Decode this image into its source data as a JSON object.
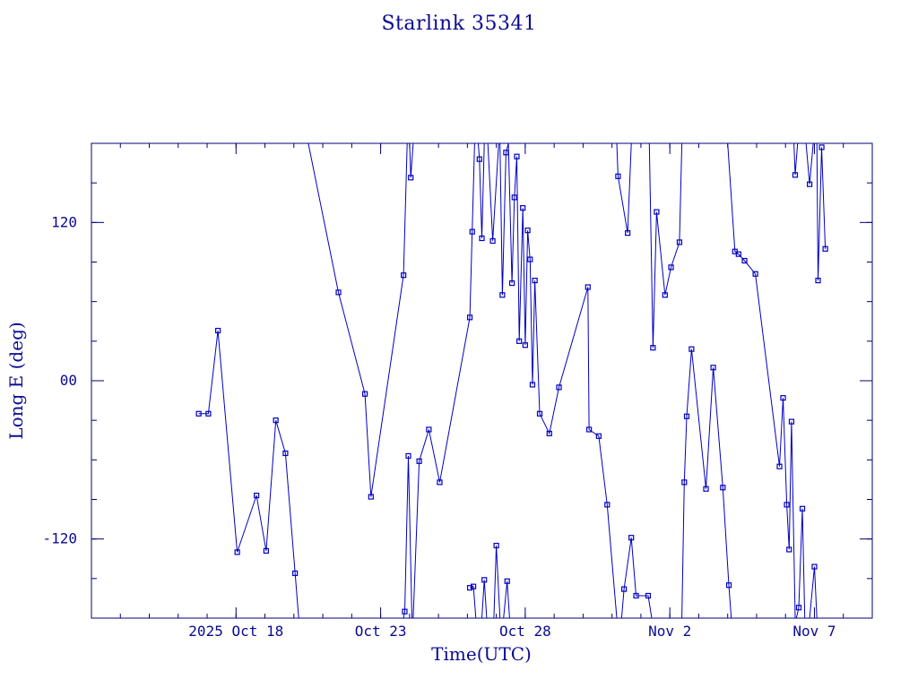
{
  "chart_data": {
    "type": "line",
    "title": "Starlink 35341",
    "xlabel": "Time(UTC)",
    "ylabel": "Long E (deg)",
    "x_unit": "date (UTC, 2025)",
    "xlim": [
      "2025-10-13",
      "2025-11-09"
    ],
    "ylim": [
      -180,
      180
    ],
    "x_ticks": [
      {
        "date": "2025-10-18",
        "label": "2025 Oct 18"
      },
      {
        "date": "2025-10-23",
        "label": "Oct 23"
      },
      {
        "date": "2025-10-28",
        "label": "Oct 28"
      },
      {
        "date": "2025-11-02",
        "label": "Nov  2"
      },
      {
        "date": "2025-11-07",
        "label": "Nov  7"
      }
    ],
    "y_ticks": [
      {
        "value": 120,
        "label": "120"
      },
      {
        "value": 0,
        "label": "00"
      },
      {
        "value": -120,
        "label": "-120"
      }
    ],
    "grid": false,
    "marker": "square",
    "color": "#0000c0",
    "series": [
      {
        "points": [
          [
            "2025-10-16 17:00",
            -25
          ],
          [
            "2025-10-17 01:00",
            -25
          ],
          [
            "2025-10-17 09:00",
            38
          ],
          [
            "2025-10-18 01:00",
            -130
          ],
          [
            "2025-10-18 17:00",
            -87
          ],
          [
            "2025-10-19 01:00",
            -129
          ],
          [
            "2025-10-19 09:00",
            -30
          ],
          [
            "2025-10-19 17:00",
            -55
          ],
          [
            "2025-10-20 01:00",
            -146
          ],
          [
            "2025-10-20 04:00",
            -180
          ]
        ]
      },
      {
        "points": [
          [
            "2025-10-20 12:00",
            180
          ],
          [
            "2025-10-21 13:00",
            67
          ],
          [
            "2025-10-22 11:00",
            -10
          ],
          [
            "2025-10-22 16:00",
            -88
          ],
          [
            "2025-10-23 19:00",
            80
          ],
          [
            "2025-10-23 22:00",
            180
          ]
        ]
      },
      {
        "points": [
          [
            "2025-10-23 19:00",
            -180
          ],
          [
            "2025-10-23 20:00",
            -175
          ],
          [
            "2025-10-23 23:00",
            -57
          ],
          [
            "2025-10-24 02:00",
            -180
          ]
        ]
      },
      {
        "points": [
          [
            "2025-10-24 00:00",
            180
          ],
          [
            "2025-10-24 01:00",
            154
          ],
          [
            "2025-10-24 03:00",
            180
          ]
        ]
      },
      {
        "points": [
          [
            "2025-10-24 03:00",
            -180
          ],
          [
            "2025-10-24 08:00",
            -61
          ],
          [
            "2025-10-24 16:00",
            -37
          ],
          [
            "2025-10-25 01:00",
            -77
          ],
          [
            "2025-10-26 02:00",
            48
          ],
          [
            "2025-10-26 04:00",
            113
          ],
          [
            "2025-10-26 06:00",
            180
          ]
        ]
      },
      {
        "points": [
          [
            "2025-10-26 02:00",
            -157
          ],
          [
            "2025-10-26 05:00",
            -156
          ],
          [
            "2025-10-26 07:00",
            -180
          ]
        ]
      },
      {
        "points": [
          [
            "2025-10-26 09:00",
            180
          ],
          [
            "2025-10-26 10:00",
            168
          ],
          [
            "2025-10-26 12:00",
            108
          ],
          [
            "2025-10-26 14:00",
            180
          ]
        ]
      },
      {
        "points": [
          [
            "2025-10-26 12:00",
            -180
          ],
          [
            "2025-10-26 14:00",
            -151
          ],
          [
            "2025-10-26 16:00",
            -180
          ]
        ]
      },
      {
        "points": [
          [
            "2025-10-26 17:00",
            180
          ],
          [
            "2025-10-26 21:00",
            106
          ],
          [
            "2025-10-27 02:00",
            180
          ]
        ]
      },
      {
        "points": [
          [
            "2025-10-26 22:00",
            -180
          ],
          [
            "2025-10-27 00:00",
            -125
          ],
          [
            "2025-10-27 03:00",
            -180
          ]
        ]
      },
      {
        "points": [
          [
            "2025-10-27 03:00",
            180
          ],
          [
            "2025-10-27 05:00",
            65
          ],
          [
            "2025-10-27 08:00",
            173
          ],
          [
            "2025-10-27 10:00",
            180
          ]
        ]
      },
      {
        "points": [
          [
            "2025-10-27 06:00",
            -180
          ],
          [
            "2025-10-27 09:00",
            -152
          ],
          [
            "2025-10-27 11:00",
            -180
          ]
        ]
      },
      {
        "points": [
          [
            "2025-10-27 10:00",
            180
          ],
          [
            "2025-10-27 13:00",
            74
          ],
          [
            "2025-10-27 15:00",
            139
          ],
          [
            "2025-10-27 17:00",
            170
          ],
          [
            "2025-10-27 19:00",
            30
          ],
          [
            "2025-10-27 22:00",
            131
          ],
          [
            "2025-10-28 00:00",
            27
          ],
          [
            "2025-10-28 02:00",
            114
          ],
          [
            "2025-10-28 04:00",
            92
          ],
          [
            "2025-10-28 06:00",
            -3
          ],
          [
            "2025-10-28 08:00",
            76
          ],
          [
            "2025-10-28 12:00",
            -25
          ],
          [
            "2025-10-28 20:00",
            -40
          ],
          [
            "2025-10-29 04:00",
            -5
          ],
          [
            "2025-10-30 04:00",
            71
          ],
          [
            "2025-10-30 05:00",
            -37
          ],
          [
            "2025-10-30 13:00",
            -42
          ],
          [
            "2025-10-30 20:00",
            -94
          ],
          [
            "2025-10-31 04:00",
            -180
          ]
        ]
      },
      {
        "points": [
          [
            "2025-10-31 04:00",
            180
          ],
          [
            "2025-10-31 05:00",
            155
          ],
          [
            "2025-10-31 13:00",
            112
          ],
          [
            "2025-10-31 16:00",
            180
          ]
        ]
      },
      {
        "points": [
          [
            "2025-10-31 08:00",
            -180
          ],
          [
            "2025-10-31 10:00",
            -158
          ],
          [
            "2025-10-31 16:00",
            -119
          ],
          [
            "2025-10-31 20:00",
            -163
          ],
          [
            "2025-11-01 06:00",
            -163
          ],
          [
            "2025-11-01 09:00",
            -180
          ]
        ]
      },
      {
        "points": [
          [
            "2025-11-01 07:00",
            180
          ],
          [
            "2025-11-01 10:00",
            25
          ],
          [
            "2025-11-01 13:00",
            128
          ],
          [
            "2025-11-01 20:00",
            65
          ],
          [
            "2025-11-02 01:00",
            86
          ],
          [
            "2025-11-02 08:00",
            105
          ],
          [
            "2025-11-02 10:00",
            180
          ]
        ]
      },
      {
        "points": [
          [
            "2025-11-02 10:00",
            -180
          ],
          [
            "2025-11-02 12:00",
            -77
          ],
          [
            "2025-11-02 14:00",
            -27
          ],
          [
            "2025-11-02 18:00",
            24
          ],
          [
            "2025-11-03 06:00",
            -82
          ],
          [
            "2025-11-03 12:00",
            10
          ],
          [
            "2025-11-03 20:00",
            -81
          ],
          [
            "2025-11-04 01:00",
            -155
          ],
          [
            "2025-11-04 03:00",
            -180
          ]
        ]
      },
      {
        "points": [
          [
            "2025-11-04 00:00",
            180
          ],
          [
            "2025-11-04 06:00",
            98
          ],
          [
            "2025-11-04 09:00",
            96
          ],
          [
            "2025-11-04 14:00",
            91
          ],
          [
            "2025-11-04 23:00",
            81
          ],
          [
            "2025-11-05 19:00",
            -65
          ],
          [
            "2025-11-05 22:00",
            -13
          ],
          [
            "2025-11-06 01:00",
            -94
          ],
          [
            "2025-11-06 03:00",
            -128
          ],
          [
            "2025-11-06 05:00",
            -31
          ],
          [
            "2025-11-06 08:00",
            -180
          ]
        ]
      },
      {
        "points": [
          [
            "2025-11-06 07:00",
            180
          ],
          [
            "2025-11-06 08:00",
            156
          ],
          [
            "2025-11-06 10:00",
            180
          ]
        ]
      },
      {
        "points": [
          [
            "2025-11-06 09:00",
            -180
          ],
          [
            "2025-11-06 11:00",
            -172
          ],
          [
            "2025-11-06 14:00",
            -97
          ],
          [
            "2025-11-06 16:00",
            -180
          ]
        ]
      },
      {
        "points": [
          [
            "2025-11-06 17:00",
            180
          ],
          [
            "2025-11-06 20:00",
            149
          ],
          [
            "2025-11-06 23:00",
            180
          ]
        ]
      },
      {
        "points": [
          [
            "2025-11-06 20:00",
            -180
          ],
          [
            "2025-11-07 00:00",
            -141
          ],
          [
            "2025-11-07 02:00",
            -180
          ]
        ]
      },
      {
        "points": [
          [
            "2025-11-07 02:00",
            180
          ],
          [
            "2025-11-07 03:00",
            76
          ],
          [
            "2025-11-07 06:00",
            177
          ],
          [
            "2025-11-07 09:00",
            100
          ]
        ]
      }
    ]
  }
}
